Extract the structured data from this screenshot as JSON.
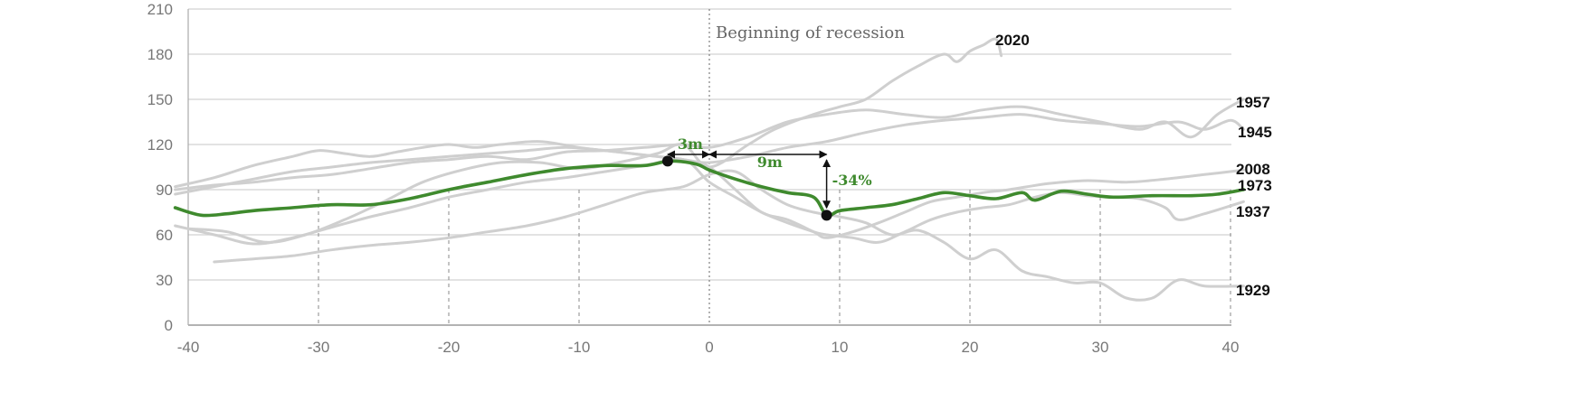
{
  "chart_data": {
    "type": "line",
    "title": "",
    "xlabel": "",
    "ylabel": "",
    "xlim": [
      -41,
      41
    ],
    "ylim": [
      0,
      210
    ],
    "x_ticks": [
      -40,
      -30,
      -20,
      -10,
      0,
      10,
      20,
      30,
      40
    ],
    "x_tick_labels": [
      "-40",
      "-30",
      "-20",
      "-10",
      "0",
      "10",
      "20",
      "30",
      "40"
    ],
    "y_ticks": [
      0,
      30,
      60,
      90,
      120,
      150,
      180,
      210
    ],
    "y_tick_labels": [
      "0",
      "30",
      "60",
      "90",
      "120",
      "150",
      "180",
      "210"
    ],
    "grid": true,
    "highlight_color": "#3f8a2e",
    "background_color": "#cfcfcf",
    "series": [
      {
        "name": "2020",
        "highlight": false,
        "points": [
          [
            -40,
            64
          ],
          [
            -37,
            62
          ],
          [
            -34,
            55
          ],
          [
            -31,
            60
          ],
          [
            -28,
            70
          ],
          [
            -25,
            82
          ],
          [
            -22,
            95
          ],
          [
            -19,
            103
          ],
          [
            -16,
            108
          ],
          [
            -13,
            108
          ],
          [
            -10,
            104
          ],
          [
            -7,
            108
          ],
          [
            -4,
            114
          ],
          [
            -2,
            120
          ],
          [
            0,
            105
          ],
          [
            3,
            120
          ],
          [
            5,
            130
          ],
          [
            8,
            140
          ],
          [
            10,
            145
          ],
          [
            12,
            150
          ],
          [
            14,
            162
          ],
          [
            16,
            172
          ],
          [
            18,
            180
          ],
          [
            19,
            175
          ],
          [
            20,
            182
          ],
          [
            21,
            186
          ],
          [
            22,
            190
          ],
          [
            22.4,
            179
          ]
        ]
      },
      {
        "name": "1957",
        "highlight": false,
        "points": [
          [
            -41,
            90
          ],
          [
            -38,
            93
          ],
          [
            -35,
            95
          ],
          [
            -32,
            98
          ],
          [
            -29,
            100
          ],
          [
            -26,
            104
          ],
          [
            -23,
            108
          ],
          [
            -20,
            110
          ],
          [
            -17,
            112
          ],
          [
            -14,
            110
          ],
          [
            -11,
            115
          ],
          [
            -8,
            116
          ],
          [
            -5,
            118
          ],
          [
            -2,
            120
          ],
          [
            0,
            118
          ],
          [
            3,
            125
          ],
          [
            6,
            135
          ],
          [
            9,
            140
          ],
          [
            12,
            143
          ],
          [
            15,
            140
          ],
          [
            18,
            138
          ],
          [
            21,
            143
          ],
          [
            24,
            145
          ],
          [
            27,
            140
          ],
          [
            30,
            135
          ],
          [
            33,
            130
          ],
          [
            35,
            135
          ],
          [
            37,
            125
          ],
          [
            39,
            140
          ],
          [
            41,
            150
          ]
        ]
      },
      {
        "name": "1945",
        "highlight": false,
        "points": [
          [
            -41,
            87
          ],
          [
            -38,
            92
          ],
          [
            -35,
            97
          ],
          [
            -32,
            102
          ],
          [
            -29,
            105
          ],
          [
            -26,
            108
          ],
          [
            -23,
            110
          ],
          [
            -20,
            112
          ],
          [
            -17,
            114
          ],
          [
            -14,
            116
          ],
          [
            -11,
            118
          ],
          [
            -8,
            116
          ],
          [
            -5,
            113
          ],
          [
            -2,
            110
          ],
          [
            0,
            108
          ],
          [
            3,
            112
          ],
          [
            6,
            118
          ],
          [
            9,
            122
          ],
          [
            12,
            128
          ],
          [
            15,
            133
          ],
          [
            18,
            136
          ],
          [
            21,
            138
          ],
          [
            24,
            140
          ],
          [
            27,
            136
          ],
          [
            30,
            134
          ],
          [
            33,
            132
          ],
          [
            36,
            135
          ],
          [
            38,
            130
          ],
          [
            40,
            136
          ],
          [
            41,
            130
          ]
        ]
      },
      {
        "name": "2008",
        "highlight": false,
        "points": [
          [
            -41,
            92
          ],
          [
            -38,
            98
          ],
          [
            -35,
            106
          ],
          [
            -32,
            112
          ],
          [
            -30,
            116
          ],
          [
            -28,
            114
          ],
          [
            -26,
            112
          ],
          [
            -24,
            115
          ],
          [
            -22,
            118
          ],
          [
            -20,
            120
          ],
          [
            -18,
            118
          ],
          [
            -16,
            120
          ],
          [
            -13,
            122
          ],
          [
            -10,
            118
          ],
          [
            -7,
            115
          ],
          [
            -4,
            112
          ],
          [
            -2,
            110
          ],
          [
            0,
            105
          ],
          [
            2,
            90
          ],
          [
            4,
            75
          ],
          [
            6,
            70
          ],
          [
            8,
            62
          ],
          [
            9,
            58
          ],
          [
            11,
            62
          ],
          [
            13,
            68
          ],
          [
            15,
            75
          ],
          [
            17,
            82
          ],
          [
            19,
            85
          ],
          [
            21,
            88
          ],
          [
            23,
            90
          ],
          [
            26,
            94
          ],
          [
            29,
            96
          ],
          [
            32,
            95
          ],
          [
            35,
            97
          ],
          [
            38,
            100
          ],
          [
            41,
            103
          ]
        ]
      },
      {
        "name": "1973",
        "highlight": true,
        "points": [
          [
            -41,
            78
          ],
          [
            -39,
            73
          ],
          [
            -37,
            74
          ],
          [
            -35,
            76
          ],
          [
            -32,
            78
          ],
          [
            -29,
            80
          ],
          [
            -26,
            80
          ],
          [
            -23,
            84
          ],
          [
            -20,
            90
          ],
          [
            -17,
            95
          ],
          [
            -14,
            100
          ],
          [
            -11,
            104
          ],
          [
            -8,
            106
          ],
          [
            -5,
            106
          ],
          [
            -3,
            109
          ],
          [
            -1,
            107
          ],
          [
            0,
            103
          ],
          [
            2,
            97
          ],
          [
            4,
            92
          ],
          [
            6,
            88
          ],
          [
            8,
            85
          ],
          [
            9,
            73
          ],
          [
            10,
            76
          ],
          [
            12,
            78
          ],
          [
            14,
            80
          ],
          [
            16,
            84
          ],
          [
            18,
            88
          ],
          [
            20,
            86
          ],
          [
            22,
            84
          ],
          [
            24,
            88
          ],
          [
            25,
            83
          ],
          [
            27,
            89
          ],
          [
            29,
            87
          ],
          [
            31,
            85
          ],
          [
            34,
            86
          ],
          [
            37,
            86
          ],
          [
            39,
            87
          ],
          [
            41,
            90
          ]
        ]
      },
      {
        "name": "1937",
        "highlight": false,
        "points": [
          [
            -41,
            66
          ],
          [
            -38,
            60
          ],
          [
            -35,
            54
          ],
          [
            -32,
            58
          ],
          [
            -29,
            65
          ],
          [
            -26,
            72
          ],
          [
            -23,
            78
          ],
          [
            -20,
            85
          ],
          [
            -17,
            90
          ],
          [
            -14,
            95
          ],
          [
            -11,
            98
          ],
          [
            -8,
            102
          ],
          [
            -5,
            106
          ],
          [
            -2,
            110
          ],
          [
            0,
            95
          ],
          [
            2,
            85
          ],
          [
            4,
            75
          ],
          [
            6,
            68
          ],
          [
            8,
            62
          ],
          [
            9,
            60
          ],
          [
            11,
            58
          ],
          [
            13,
            55
          ],
          [
            15,
            62
          ],
          [
            17,
            70
          ],
          [
            19,
            75
          ],
          [
            21,
            78
          ],
          [
            23,
            80
          ],
          [
            25,
            85
          ],
          [
            27,
            88
          ],
          [
            29,
            86
          ],
          [
            31,
            85
          ],
          [
            33,
            84
          ],
          [
            35,
            78
          ],
          [
            36,
            70
          ],
          [
            38,
            74
          ],
          [
            41,
            82
          ]
        ]
      },
      {
        "name": "1929",
        "highlight": false,
        "points": [
          [
            -38,
            42
          ],
          [
            -35,
            44
          ],
          [
            -32,
            46
          ],
          [
            -29,
            50
          ],
          [
            -26,
            53
          ],
          [
            -23,
            55
          ],
          [
            -20,
            58
          ],
          [
            -17,
            62
          ],
          [
            -14,
            66
          ],
          [
            -11,
            72
          ],
          [
            -8,
            80
          ],
          [
            -5,
            88
          ],
          [
            -2,
            92
          ],
          [
            0,
            100
          ],
          [
            2,
            102
          ],
          [
            4,
            90
          ],
          [
            6,
            80
          ],
          [
            8,
            75
          ],
          [
            10,
            72
          ],
          [
            12,
            68
          ],
          [
            14,
            60
          ],
          [
            16,
            63
          ],
          [
            18,
            55
          ],
          [
            20,
            44
          ],
          [
            22,
            50
          ],
          [
            24,
            36
          ],
          [
            26,
            32
          ],
          [
            28,
            28
          ],
          [
            30,
            28
          ],
          [
            32,
            18
          ],
          [
            34,
            18
          ],
          [
            36,
            30
          ],
          [
            38,
            26
          ],
          [
            41,
            26
          ]
        ]
      }
    ],
    "annotations": {
      "recession_line_x": 0,
      "recession_label": "Beginning of recession",
      "peak_point": [
        -3.2,
        109
      ],
      "trough_point": [
        9,
        73
      ],
      "lead_label": "3m",
      "duration_label": "9m",
      "drop_label": "-34%"
    }
  }
}
